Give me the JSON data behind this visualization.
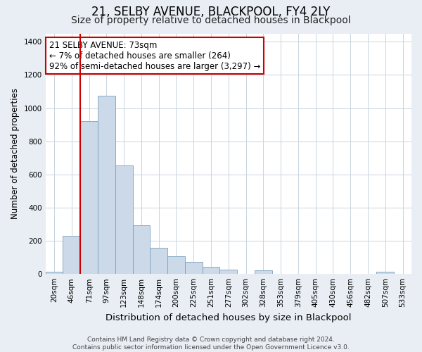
{
  "title": "21, SELBY AVENUE, BLACKPOOL, FY4 2LY",
  "subtitle": "Size of property relative to detached houses in Blackpool",
  "xlabel": "Distribution of detached houses by size in Blackpool",
  "ylabel": "Number of detached properties",
  "bar_labels": [
    "20sqm",
    "46sqm",
    "71sqm",
    "97sqm",
    "123sqm",
    "148sqm",
    "174sqm",
    "200sqm",
    "225sqm",
    "251sqm",
    "277sqm",
    "302sqm",
    "328sqm",
    "353sqm",
    "379sqm",
    "405sqm",
    "430sqm",
    "456sqm",
    "482sqm",
    "507sqm",
    "533sqm"
  ],
  "bar_values": [
    15,
    228,
    920,
    1075,
    655,
    293,
    158,
    108,
    72,
    42,
    26,
    0,
    20,
    0,
    0,
    0,
    0,
    0,
    0,
    12,
    0
  ],
  "bar_color": "#ccd9e8",
  "bar_edge_color": "#7aa0c0",
  "vline_x": 1.5,
  "vline_color": "#cc0000",
  "annotation_line1": "21 SELBY AVENUE: 73sqm",
  "annotation_line2": "← 7% of detached houses are smaller (264)",
  "annotation_line3": "92% of semi-detached houses are larger (3,297) →",
  "annotation_box_facecolor": "white",
  "annotation_box_edgecolor": "#cc0000",
  "ylim": [
    0,
    1450
  ],
  "yticks": [
    0,
    200,
    400,
    600,
    800,
    1000,
    1200,
    1400
  ],
  "footnote": "Contains HM Land Registry data © Crown copyright and database right 2024.\nContains public sector information licensed under the Open Government Licence v3.0.",
  "title_fontsize": 12,
  "subtitle_fontsize": 10,
  "xlabel_fontsize": 9.5,
  "ylabel_fontsize": 8.5,
  "tick_fontsize": 7.5,
  "annot_fontsize": 8.5,
  "footnote_fontsize": 6.5,
  "bg_color": "#e8eef4",
  "plot_bg_color": "white",
  "grid_color": "#c8d4de"
}
